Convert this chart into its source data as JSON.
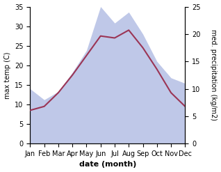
{
  "months": [
    "Jan",
    "Feb",
    "Mar",
    "Apr",
    "May",
    "Jun",
    "Jul",
    "Aug",
    "Sep",
    "Oct",
    "Nov",
    "Dec"
  ],
  "temp": [
    8.5,
    9.5,
    13.0,
    17.5,
    22.5,
    27.5,
    27.0,
    29.0,
    24.5,
    19.0,
    13.0,
    9.5
  ],
  "precip": [
    10.0,
    8.0,
    9.5,
    13.0,
    17.0,
    25.0,
    22.0,
    24.0,
    20.0,
    15.0,
    12.0,
    11.0
  ],
  "temp_color": "#9b3555",
  "precip_fill_color": "#bfc8e8",
  "temp_ylim": [
    0,
    35
  ],
  "precip_ylim": [
    0,
    25
  ],
  "temp_yticks": [
    0,
    5,
    10,
    15,
    20,
    25,
    30,
    35
  ],
  "precip_yticks": [
    0,
    5,
    10,
    15,
    20,
    25
  ],
  "xlabel": "date (month)",
  "ylabel_left": "max temp (C)",
  "ylabel_right": "med. precipitation (kg/m2)",
  "label_fontsize": 8,
  "tick_fontsize": 7
}
